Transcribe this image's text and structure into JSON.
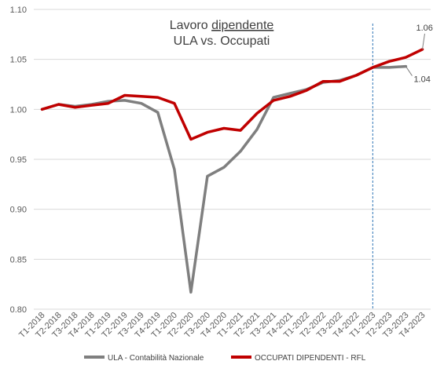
{
  "chart_data": {
    "type": "line",
    "title_line1_plain": "Lavoro ",
    "title_line1_underlined": "dipendente",
    "title_line2": "ULA vs. Occupati",
    "categories": [
      "T1-2018",
      "T2-2018",
      "T3-2018",
      "T4-2018",
      "T1-2019",
      "T2-2019",
      "T3-2019",
      "T4-2019",
      "T1-2020",
      "T2-2020",
      "T3-2020",
      "T4-2020",
      "T1-2021",
      "T2-2021",
      "T3-2021",
      "T4-2021",
      "T1-2022",
      "T2-2022",
      "T3-2022",
      "T4-2022",
      "T1-2023",
      "T2-2023",
      "T3-2023",
      "T4-2023"
    ],
    "ylim": [
      0.8,
      1.1
    ],
    "yticks": [
      "0.80",
      "0.85",
      "0.90",
      "0.95",
      "1.00",
      "1.05",
      "1.10"
    ],
    "grid": "horizontal",
    "legend_position": "bottom",
    "series": [
      {
        "name": "ULA - Contabilità Nazionale",
        "color": "#7f7f7f",
        "values": [
          1.0,
          1.005,
          1.003,
          1.005,
          1.008,
          1.009,
          1.006,
          0.997,
          0.94,
          0.817,
          0.933,
          0.942,
          0.958,
          0.98,
          1.012,
          1.016,
          1.02,
          1.027,
          1.029,
          1.034,
          1.042,
          1.042,
          1.043,
          null
        ]
      },
      {
        "name": "OCCUPATI DIPENDENTI - RFL",
        "color": "#c00000",
        "values": [
          1.0,
          1.005,
          1.002,
          1.004,
          1.006,
          1.014,
          1.013,
          1.012,
          1.006,
          0.97,
          0.977,
          0.981,
          0.979,
          0.996,
          1.009,
          1.013,
          1.019,
          1.028,
          1.028,
          1.034,
          1.042,
          1.048,
          1.052,
          1.06
        ]
      }
    ],
    "annotations": [
      {
        "text": "1.06",
        "series": "OCCUPATI DIPENDENTI - RFL",
        "category": "T4-2023"
      },
      {
        "text": "1.04",
        "series": "ULA - Contabilità Nazionale",
        "category": "T3-2023"
      }
    ],
    "vertical_marker": {
      "category": "T1-2023",
      "style": "dashed",
      "color": "#2e75b6"
    }
  }
}
